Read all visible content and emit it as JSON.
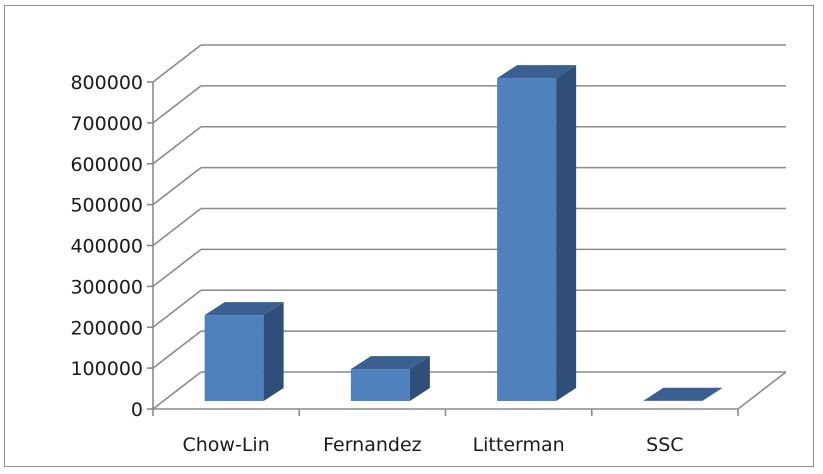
{
  "chart_data": {
    "type": "bar",
    "style": "3d-clustered-column",
    "categories": [
      "Chow-Lin",
      "Fernandez",
      "Litterman",
      "SSC"
    ],
    "values": [
      210000,
      78000,
      790000,
      500
    ],
    "ylim": [
      0,
      800000
    ],
    "yticks": [
      "0",
      "100000",
      "200000",
      "300000",
      "400000",
      "500000",
      "600000",
      "700000",
      "800000"
    ],
    "grid": true,
    "legend": "none",
    "colors": {
      "bar_front": "#4f81bd",
      "bar_side": "#2f4f7a",
      "bar_top": "#3a5f90",
      "grid": "#8a8a8a"
    }
  }
}
